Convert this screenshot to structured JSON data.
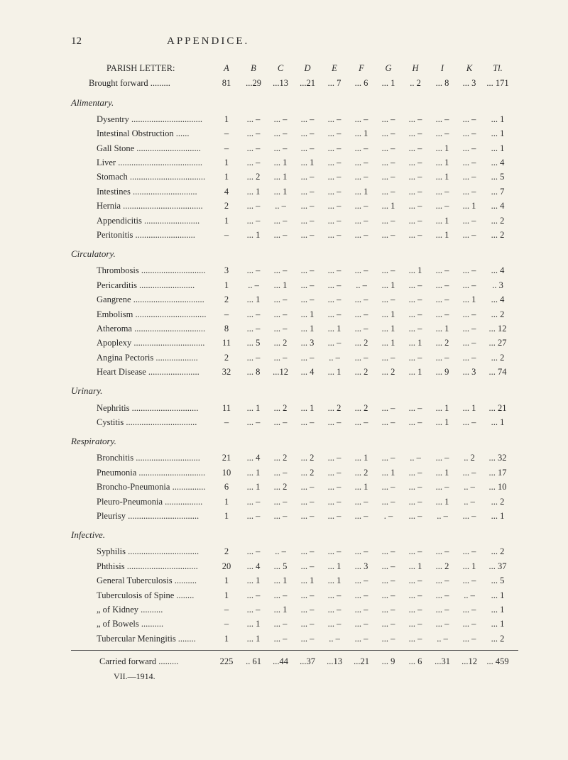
{
  "page": {
    "number": "12",
    "title": "APPENDICE."
  },
  "header": {
    "parishLetter": "PARISH LETTER:",
    "broughtForward": "Brought forward",
    "columns": [
      "A",
      "B",
      "C",
      "D",
      "E",
      "F",
      "G",
      "H",
      "I",
      "K",
      "Tl."
    ],
    "bfValues": [
      "81",
      "...29",
      "...13",
      "...21",
      "... 7",
      "... 6",
      "... 1",
      ".. 2",
      "... 8",
      "... 3",
      "... 171"
    ]
  },
  "sections": [
    {
      "title": "Alimentary.",
      "rows": [
        {
          "label": "Dysentry",
          "vals": [
            "1",
            "... –",
            "... –",
            "... –",
            "... –",
            "... –",
            "... –",
            "... –",
            "... –",
            "... –",
            "... 1"
          ]
        },
        {
          "label": "Intestinal Obstruction",
          "vals": [
            "–",
            "... –",
            "... –",
            "... –",
            "... –",
            "... 1",
            "... –",
            "... –",
            "... –",
            "... –",
            "... 1"
          ]
        },
        {
          "label": "Gall Stone",
          "vals": [
            "–",
            "... –",
            "... –",
            "... –",
            "... –",
            "... –",
            "... –",
            "... –",
            "... 1",
            "... –",
            "... 1"
          ]
        },
        {
          "label": "Liver",
          "vals": [
            "1",
            "... –",
            "... 1",
            "... 1",
            "... –",
            "... –",
            "... –",
            "... –",
            "... 1",
            "... –",
            "... 4"
          ]
        },
        {
          "label": "Stomach",
          "vals": [
            "1",
            "... 2",
            "... 1",
            "... –",
            "... –",
            "... –",
            "... –",
            "... –",
            "... 1",
            "... –",
            "... 5"
          ]
        },
        {
          "label": "Intestines",
          "vals": [
            "4",
            "... 1",
            "... 1",
            "... –",
            "... –",
            "... 1",
            "... –",
            "... –",
            "... –",
            "... –",
            "... 7"
          ]
        },
        {
          "label": "Hernia",
          "vals": [
            "2",
            "... –",
            ".. –",
            "... –",
            "... –",
            "... –",
            "... 1",
            "... –",
            "... –",
            "... 1",
            "... 4"
          ]
        },
        {
          "label": "Appendicitis",
          "vals": [
            "1",
            "... –",
            "... –",
            "... –",
            "... –",
            "... –",
            "... –",
            "... –",
            "... 1",
            "... –",
            "... 2"
          ]
        },
        {
          "label": "Peritonitis",
          "vals": [
            "–",
            "... 1",
            "... –",
            "... –",
            "... –",
            "... –",
            "... –",
            "... –",
            "... 1",
            "... –",
            "... 2"
          ]
        }
      ]
    },
    {
      "title": "Circulatory.",
      "rows": [
        {
          "label": "Thrombosis",
          "vals": [
            "3",
            "... –",
            "... –",
            "... –",
            "... –",
            "... –",
            "... –",
            "... 1",
            "... –",
            "... –",
            "... 4"
          ]
        },
        {
          "label": "Pericarditis",
          "vals": [
            "1",
            ".. –",
            "... 1",
            "... –",
            "... –",
            ".. –",
            "... 1",
            "... –",
            "... –",
            "... –",
            ".. 3"
          ]
        },
        {
          "label": "Gangrene",
          "vals": [
            "2",
            "... 1",
            "... –",
            "... –",
            "... –",
            "... –",
            "... –",
            "... –",
            "... –",
            "... 1",
            "... 4"
          ]
        },
        {
          "label": "Embolism",
          "vals": [
            "–",
            "... –",
            "... –",
            "... 1",
            "... –",
            "... –",
            "... 1",
            "... –",
            "... –",
            "... –",
            "... 2"
          ]
        },
        {
          "label": "Atheroma",
          "vals": [
            "8",
            "... –",
            "... –",
            "... 1",
            "... 1",
            "... –",
            "... 1",
            "... –",
            "... 1",
            "... –",
            "... 12"
          ]
        },
        {
          "label": "Apoplexy",
          "vals": [
            "11",
            "... 5",
            "... 2",
            "... 3",
            "... –",
            "... 2",
            "... 1",
            "... 1",
            "... 2",
            "... –",
            "... 27"
          ]
        },
        {
          "label": "Angina Pectoris",
          "vals": [
            "2",
            "... –",
            "... –",
            "... –",
            ".. –",
            "... –",
            "... –",
            "... –",
            "... –",
            "... –",
            "... 2"
          ]
        },
        {
          "label": "Heart Disease",
          "vals": [
            "32",
            "... 8",
            "...12",
            "... 4",
            "... 1",
            "... 2",
            "... 2",
            "... 1",
            "... 9",
            "... 3",
            "... 74"
          ]
        }
      ]
    },
    {
      "title": "Urinary.",
      "rows": [
        {
          "label": "Nephritis",
          "vals": [
            "11",
            "... 1",
            "... 2",
            "... 1",
            "... 2",
            "... 2",
            "... –",
            "... –",
            "... 1",
            "... 1",
            "... 21"
          ]
        },
        {
          "label": "Cystitis",
          "vals": [
            "–",
            "... –",
            "... –",
            "... –",
            "... –",
            "... –",
            "... –",
            "... –",
            "... 1",
            "... –",
            "... 1"
          ]
        }
      ]
    },
    {
      "title": "Respiratory.",
      "rows": [
        {
          "label": "Bronchitis",
          "vals": [
            "21",
            "... 4",
            "... 2",
            "... 2",
            "... –",
            "... 1",
            "... –",
            ".. –",
            "... –",
            ".. 2",
            "... 32"
          ]
        },
        {
          "label": "Pneumonia",
          "vals": [
            "10",
            "... 1",
            "... –",
            "... 2",
            "... –",
            "... 2",
            "... 1",
            "... –",
            "... 1",
            "... –",
            "... 17"
          ]
        },
        {
          "label": "Broncho-Pneumonia",
          "vals": [
            "6",
            "... 1",
            "... 2",
            "... –",
            "... –",
            "... 1",
            "... –",
            "... –",
            "... –",
            ".. –",
            "... 10"
          ]
        },
        {
          "label": "Pleuro-Pneumonia",
          "vals": [
            "1",
            "... –",
            "... –",
            "... –",
            "... –",
            "... –",
            "... –",
            "... –",
            "... 1",
            ".. –",
            "... 2"
          ]
        },
        {
          "label": "Pleurisy",
          "vals": [
            "1",
            "... –",
            "... –",
            "... –",
            "... –",
            "... –",
            ". –",
            "... –",
            ".. –",
            "... –",
            "... 1"
          ]
        }
      ]
    },
    {
      "title": "Infective.",
      "rows": [
        {
          "label": "Syphilis",
          "vals": [
            "2",
            "... –",
            ".. –",
            "... –",
            "... –",
            "... –",
            "... –",
            "... –",
            "... –",
            "... –",
            "... 2"
          ]
        },
        {
          "label": "Phthisis",
          "vals": [
            "20",
            "... 4",
            "... 5",
            "... –",
            "... 1",
            "... 3",
            "... –",
            "... 1",
            "... 2",
            "... 1",
            "... 37"
          ]
        },
        {
          "label": "General Tuberculosis",
          "vals": [
            "1",
            "... 1",
            "... 1",
            "... 1",
            "... 1",
            "... –",
            "... –",
            "... –",
            "... –",
            "... –",
            "... 5"
          ]
        },
        {
          "label": "Tuberculosis of Spine",
          "vals": [
            "1",
            "... –",
            "... –",
            "... –",
            "... –",
            "... –",
            "... –",
            "... –",
            "... –",
            ".. –",
            "... 1"
          ]
        },
        {
          "label": "„          of Kidney",
          "vals": [
            "–",
            "... –",
            "... 1",
            "... –",
            "... –",
            "... –",
            "... –",
            "... –",
            "... –",
            "... –",
            "... 1"
          ]
        },
        {
          "label": "„          of Bowels",
          "vals": [
            "–",
            "... 1",
            "... –",
            "... –",
            "... –",
            "... –",
            "... –",
            "... –",
            "... –",
            "... –",
            "... 1"
          ]
        },
        {
          "label": "Tubercular Meningitis",
          "vals": [
            "1",
            "... 1",
            "... –",
            "... –",
            ".. –",
            "... –",
            "... –",
            "... –",
            ".. –",
            "... –",
            "... 2"
          ]
        }
      ]
    }
  ],
  "footer": {
    "carriedForward": "Carried forward",
    "cfValues": [
      "225",
      ".. 61",
      "...44",
      "...37",
      "...13",
      "...21",
      "... 9",
      "... 6",
      "...31",
      "...12",
      "... 459"
    ],
    "note": "VII.—1914."
  }
}
